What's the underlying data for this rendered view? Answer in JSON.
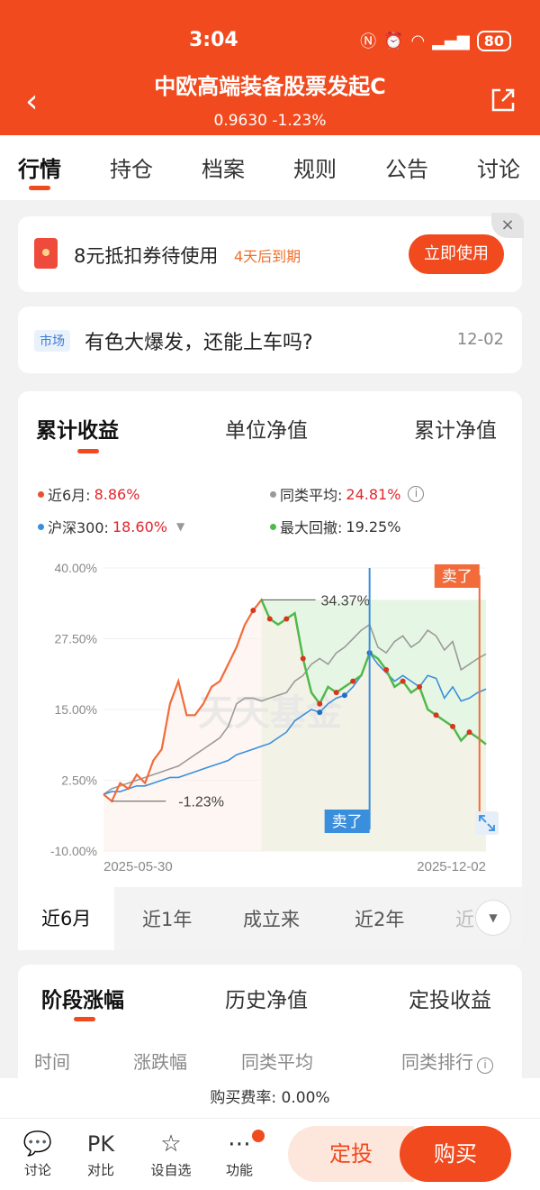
{
  "status": {
    "time": "3:04",
    "battery": "80"
  },
  "header": {
    "title": "中欧高端装备股票发起C",
    "subtitle": "0.9630 -1.23%"
  },
  "tabs": [
    "行情",
    "持仓",
    "档案",
    "规则",
    "公告",
    "讨论"
  ],
  "coupon": {
    "text": "8元抵扣券待使用",
    "expire": "4天后到期",
    "button": "立即使用",
    "close": "×"
  },
  "news": {
    "tag": "市场",
    "text": "有色大爆发，还能上车吗?",
    "date": "12-02"
  },
  "chart_tabs": [
    "累计收益",
    "单位净值",
    "累计净值"
  ],
  "legend": {
    "fund_label": "近6月:",
    "fund_value": "8.86%",
    "avg_label": "同类平均:",
    "avg_value": "24.81%",
    "hs_label": "沪深300:",
    "hs_value": "18.60%",
    "dd_label": "最大回撤:",
    "dd_value": "19.25%"
  },
  "colors": {
    "fund": "#f26b3a",
    "avg": "#9a9a9a",
    "hs300": "#3a8fdc",
    "drawdown": "#4cbb4c"
  },
  "chart_labels": {
    "high": "34.37%",
    "low": "-1.23%",
    "sell_blue": "卖了",
    "sell_red": "卖了",
    "watermark": "天天基金"
  },
  "chart_data": {
    "type": "line",
    "ylim": [
      -10,
      40
    ],
    "yticks": [
      "40.00%",
      "27.50%",
      "15.00%",
      "2.50%",
      "-10.00%"
    ],
    "x_start": "2025-05-30",
    "x_end": "2025-12-02",
    "series": [
      {
        "name": "近6月",
        "values": [
          0.0,
          -1.2,
          2.0,
          1.0,
          3.5,
          2.0,
          6.0,
          8.0,
          16.0,
          20.0,
          14.0,
          14.0,
          16.0,
          19.0,
          20.0,
          23.0,
          26.0,
          30.0,
          32.5,
          34.37,
          31.0,
          30.0,
          31.0,
          32.0,
          24.0,
          18.0,
          16.0,
          19.0,
          18.0,
          19.0,
          20.0,
          21.0,
          25.0,
          24.0,
          22.0,
          19.0,
          20.0,
          18.0,
          19.0,
          15.0,
          14.0,
          13.0,
          12.0,
          9.5,
          11.0,
          10.0,
          8.86
        ]
      },
      {
        "name": "同类平均",
        "values": [
          0.0,
          1.0,
          1.5,
          2.0,
          2.5,
          3.0,
          3.5,
          4.0,
          4.5,
          5.0,
          6.0,
          7.0,
          8.0,
          9.0,
          10.0,
          12.0,
          16.0,
          17.0,
          17.0,
          16.5,
          17.0,
          17.5,
          18.0,
          20.0,
          21.0,
          23.0,
          24.0,
          23.0,
          25.0,
          26.0,
          27.5,
          29.0,
          30.0,
          26.0,
          25.0,
          27.0,
          28.0,
          26.0,
          27.0,
          29.0,
          28.0,
          25.5,
          27.0,
          22.0,
          23.0,
          24.0,
          24.81
        ]
      },
      {
        "name": "沪深300",
        "values": [
          0.0,
          0.5,
          0.5,
          1.0,
          1.5,
          1.5,
          2.0,
          2.5,
          3.0,
          3.0,
          3.5,
          4.0,
          4.5,
          5.0,
          5.5,
          6.0,
          7.0,
          7.5,
          8.0,
          8.5,
          9.0,
          10.0,
          11.0,
          13.0,
          14.0,
          15.0,
          14.5,
          16.0,
          17.0,
          17.5,
          19.0,
          21.0,
          25.0,
          23.0,
          21.5,
          20.0,
          21.0,
          20.0,
          19.0,
          21.0,
          20.5,
          17.0,
          19.0,
          16.5,
          17.0,
          18.0,
          18.6
        ]
      }
    ]
  },
  "periods": [
    "近6月",
    "近1年",
    "成立来",
    "近2年",
    "近"
  ],
  "stage_tabs": [
    "阶段涨幅",
    "历史净值",
    "定投收益"
  ],
  "stage_headers": [
    "时间",
    "涨跌幅",
    "同类平均",
    "同类排行"
  ],
  "fee": "购买费率: 0.00%",
  "bottom": {
    "items": [
      {
        "icon": "💬",
        "label": "讨论"
      },
      {
        "icon": "PK",
        "label": "对比"
      },
      {
        "icon": "☆",
        "label": "设自选"
      },
      {
        "icon": "⋯",
        "label": "功能"
      }
    ],
    "ding": "定投",
    "buy": "购买"
  }
}
